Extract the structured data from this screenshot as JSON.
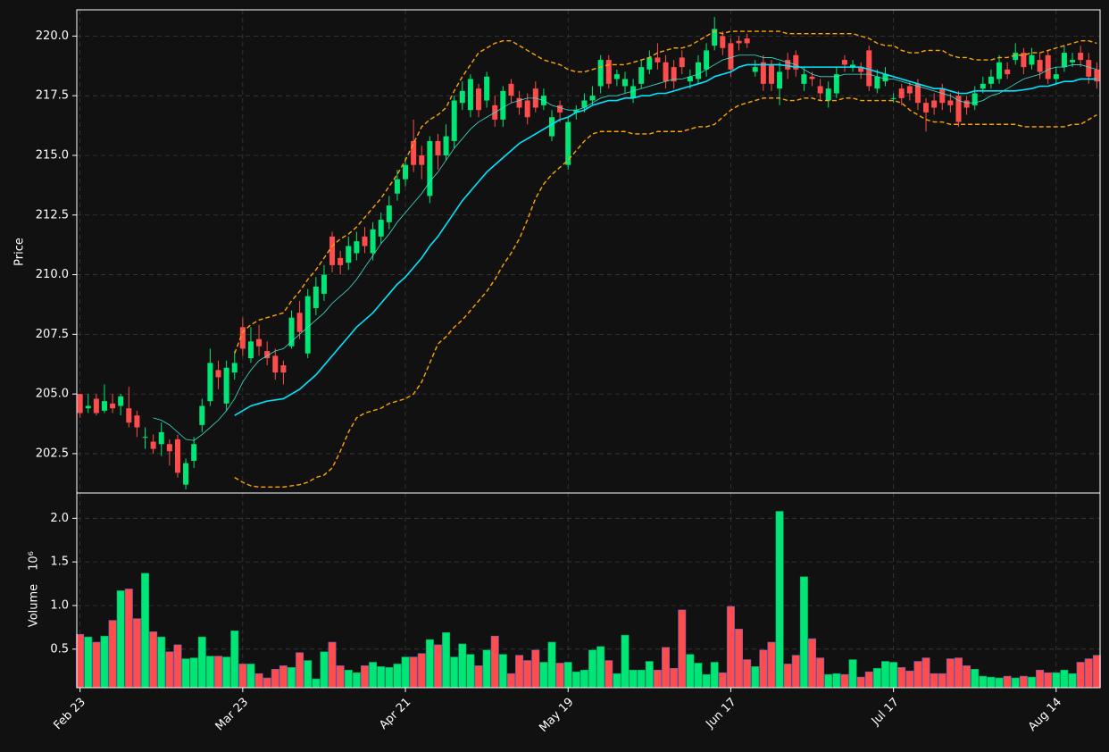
{
  "chart_data": {
    "type": "candlestick",
    "ylabel": "Price",
    "xlim": [
      -0.4,
      125.4
    ],
    "ylim": [
      200.85,
      221.1
    ],
    "yticks": [
      202.5,
      {
        "value": 205,
        "label": "205.0"
      },
      207.5,
      {
        "value": 210,
        "label": "210.0"
      },
      212.5,
      {
        "value": 215,
        "label": "215.0"
      },
      217.5,
      {
        "value": 220,
        "label": "220.0"
      }
    ],
    "xticks": [
      {
        "value": 0,
        "label": "Feb 23"
      },
      {
        "value": 20,
        "label": "Mar 23"
      },
      {
        "value": 40,
        "label": "Apr 21"
      },
      {
        "value": 60,
        "label": "May 19"
      },
      {
        "value": 80,
        "label": "Jun 17"
      },
      {
        "value": 100,
        "label": "Jul 17"
      },
      {
        "value": 120,
        "label": "Aug 14"
      }
    ],
    "grid": true,
    "up_color": "#00e676",
    "down_color": "#ff4d4d",
    "open": [
      205.0,
      204.4,
      204.8,
      204.3,
      204.6,
      204.5,
      204.4,
      204.1,
      203.2,
      203.0,
      202.9,
      202.9,
      203.1,
      201.2,
      202.2,
      203.7,
      204.7,
      206.0,
      204.6,
      205.9,
      207.8,
      206.5,
      207.3,
      206.8,
      206.6,
      206.2,
      207.0,
      208.4,
      206.7,
      208.6,
      209.2,
      211.6,
      210.7,
      210.5,
      210.9,
      211.6,
      210.9,
      211.6,
      212.2,
      213.4,
      214.0,
      215.6,
      215.0,
      213.3,
      215.6,
      215.0,
      215.6,
      217.2,
      216.9,
      217.8,
      217.3,
      217.1,
      216.5,
      218.0,
      217.4,
      217.3,
      217.8,
      217.1,
      215.8,
      217.1,
      214.6,
      216.8,
      217.0,
      217.3,
      217.9,
      219.0,
      218.2,
      217.9,
      217.4,
      218.0,
      218.6,
      219.1,
      218.9,
      218.7,
      219.1,
      218.1,
      218.2,
      218.6,
      219.6,
      220.0,
      219.7,
      219.8,
      219.9,
      218.5,
      218.9,
      218.8,
      217.8,
      219.0,
      219.2,
      218.0,
      218.3,
      217.9,
      217.3,
      217.6,
      219.0,
      218.7,
      218.7,
      219.4,
      217.8,
      218.1,
      217.4,
      217.8,
      217.9,
      218.0,
      217.2,
      217.3,
      217.8,
      217.3,
      217.5,
      217.3,
      217.1,
      217.8,
      218.0,
      218.2,
      218.6,
      219.0,
      219.3,
      218.8,
      219.0,
      219.2,
      218.2,
      218.7,
      218.9,
      219.3,
      219.0,
      218.6
    ],
    "close": [
      204.2,
      204.5,
      204.2,
      204.7,
      204.4,
      204.9,
      203.8,
      203.6,
      203.2,
      202.7,
      203.4,
      202.6,
      201.7,
      202.1,
      202.9,
      204.5,
      206.3,
      205.7,
      206.1,
      206.3,
      206.9,
      207.2,
      207.0,
      206.5,
      205.9,
      205.9,
      208.2,
      207.6,
      209.1,
      209.5,
      210.0,
      210.4,
      210.4,
      211.2,
      211.4,
      211.2,
      211.9,
      212.3,
      212.9,
      214.0,
      214.6,
      214.6,
      214.6,
      215.6,
      215.0,
      215.8,
      217.3,
      217.7,
      218.2,
      216.9,
      218.3,
      216.5,
      217.7,
      217.5,
      217.0,
      216.6,
      217.0,
      217.5,
      216.6,
      216.8,
      216.4,
      216.9,
      217.3,
      217.5,
      219.0,
      218.0,
      218.4,
      218.2,
      217.9,
      218.7,
      219.1,
      218.9,
      218.1,
      218.1,
      218.7,
      218.3,
      218.9,
      219.4,
      220.3,
      219.5,
      218.6,
      219.7,
      219.7,
      218.7,
      218.0,
      218.0,
      218.5,
      218.6,
      218.6,
      218.4,
      218.2,
      217.6,
      217.8,
      218.4,
      218.8,
      218.8,
      218.5,
      217.9,
      218.3,
      218.4,
      217.4,
      217.4,
      217.6,
      217.2,
      216.8,
      217.0,
      217.2,
      217.1,
      216.4,
      217.0,
      217.6,
      218.0,
      218.3,
      218.9,
      218.4,
      219.3,
      218.7,
      219.2,
      218.5,
      218.2,
      218.4,
      219.3,
      219.0,
      219.0,
      218.3,
      218.1
    ],
    "high": [
      205.0,
      205.0,
      205.0,
      205.4,
      205.0,
      205.0,
      205.3,
      204.3,
      203.6,
      203.3,
      203.8,
      203.1,
      203.3,
      202.3,
      203.2,
      204.8,
      206.9,
      206.4,
      206.4,
      206.8,
      208.2,
      207.8,
      207.9,
      207.2,
      206.9,
      206.4,
      208.5,
      208.9,
      209.4,
      209.9,
      210.4,
      211.8,
      211.0,
      211.6,
      211.8,
      212.0,
      212.2,
      212.6,
      213.3,
      214.4,
      214.9,
      216.5,
      215.4,
      215.8,
      215.9,
      216.3,
      217.5,
      218.1,
      218.4,
      218.0,
      218.5,
      217.5,
      217.9,
      218.2,
      217.7,
      217.6,
      218.1,
      217.8,
      216.9,
      217.3,
      216.6,
      217.1,
      217.6,
      217.9,
      219.2,
      219.2,
      218.6,
      218.5,
      218.2,
      219.0,
      219.4,
      219.7,
      219.2,
      219.0,
      219.4,
      218.6,
      219.2,
      219.7,
      220.8,
      220.2,
      219.9,
      220.0,
      220.1,
      219.0,
      219.2,
      219.0,
      218.9,
      219.3,
      219.4,
      218.7,
      218.5,
      218.2,
      218.1,
      218.7,
      219.2,
      219.0,
      218.9,
      219.6,
      218.6,
      218.7,
      217.6,
      218.0,
      218.1,
      218.2,
      217.4,
      217.6,
      218.0,
      217.6,
      217.7,
      217.5,
      217.9,
      218.3,
      218.6,
      219.2,
      218.9,
      219.7,
      219.5,
      219.5,
      219.3,
      219.4,
      218.7,
      219.6,
      219.3,
      219.6,
      219.3,
      218.9
    ],
    "low": [
      204.0,
      204.2,
      204.1,
      204.2,
      204.2,
      204.1,
      203.6,
      203.2,
      202.7,
      202.5,
      202.4,
      202.0,
      201.5,
      201.0,
      201.9,
      203.4,
      204.5,
      205.2,
      204.3,
      205.6,
      206.6,
      206.3,
      206.6,
      206.2,
      205.6,
      205.4,
      206.9,
      207.3,
      206.5,
      208.3,
      208.9,
      210.1,
      210.0,
      210.2,
      210.6,
      210.9,
      210.6,
      211.3,
      211.9,
      213.1,
      213.7,
      214.3,
      214.0,
      213.0,
      214.4,
      214.8,
      215.3,
      216.9,
      216.6,
      216.6,
      217.0,
      216.2,
      216.2,
      217.2,
      216.7,
      216.3,
      216.8,
      216.9,
      215.6,
      216.4,
      214.4,
      216.5,
      216.8,
      217.1,
      217.6,
      217.8,
      217.9,
      217.6,
      217.2,
      217.8,
      218.4,
      218.6,
      217.8,
      217.8,
      218.4,
      217.8,
      218.0,
      218.3,
      219.4,
      219.2,
      218.3,
      219.4,
      219.5,
      218.3,
      217.7,
      217.7,
      217.1,
      218.2,
      218.3,
      217.7,
      217.9,
      217.3,
      217.0,
      217.4,
      218.5,
      218.5,
      218.2,
      217.7,
      217.6,
      217.9,
      217.2,
      217.1,
      217.3,
      216.9,
      216.0,
      216.7,
      216.9,
      216.8,
      216.2,
      216.7,
      216.9,
      217.6,
      217.8,
      218.0,
      218.2,
      218.8,
      218.4,
      218.6,
      218.2,
      218.0,
      218.0,
      218.5,
      218.7,
      218.7,
      218.0,
      217.8
    ],
    "lines": [
      {
        "color": "#40e0d0",
        "width": 0.8,
        "dash": false,
        "values": [
          null,
          null,
          null,
          null,
          null,
          null,
          null,
          null,
          null,
          204.0,
          203.9,
          203.7,
          203.4,
          203.1,
          203.05,
          203.3,
          203.6,
          203.9,
          204.3,
          204.8,
          205.5,
          206.0,
          206.4,
          206.6,
          206.8,
          206.9,
          207.2,
          207.5,
          207.8,
          208.1,
          208.4,
          208.8,
          209.1,
          209.4,
          209.8,
          210.3,
          210.8,
          211.3,
          211.7,
          212.2,
          212.6,
          213.0,
          213.4,
          213.9,
          214.3,
          214.8,
          215.3,
          215.7,
          216.1,
          216.4,
          216.6,
          216.8,
          217.0,
          217.2,
          217.3,
          217.4,
          217.4,
          217.3,
          217.1,
          217.0,
          216.9,
          216.9,
          217.0,
          217.2,
          217.4,
          217.5,
          217.5,
          217.6,
          217.7,
          217.8,
          217.9,
          218.0,
          218.1,
          218.2,
          218.2,
          218.3,
          218.4,
          218.6,
          218.8,
          219.0,
          219.1,
          219.2,
          219.2,
          219.2,
          219.1,
          219.1,
          219.0,
          218.9,
          218.8,
          218.6,
          218.4,
          218.3,
          218.3,
          218.3,
          218.4,
          218.4,
          218.4,
          218.4,
          218.3,
          218.2,
          218.2,
          218.1,
          218.0,
          217.9,
          217.8,
          217.7,
          217.6,
          217.5,
          217.3,
          217.2,
          217.2,
          217.3,
          217.5,
          217.6,
          217.8,
          218.0,
          218.2,
          218.3,
          218.4,
          218.6,
          218.7,
          218.7,
          218.8,
          218.8,
          218.7,
          218.6
        ]
      },
      {
        "color": "#00e5ff",
        "width": 1.6,
        "dash": false,
        "values": [
          null,
          null,
          null,
          null,
          null,
          null,
          null,
          null,
          null,
          null,
          null,
          null,
          null,
          null,
          null,
          null,
          null,
          null,
          null,
          204.1,
          204.3,
          204.5,
          204.6,
          204.7,
          204.75,
          204.8,
          205.0,
          205.2,
          205.5,
          205.8,
          206.2,
          206.6,
          207.0,
          207.4,
          207.8,
          208.1,
          208.4,
          208.8,
          209.2,
          209.6,
          209.9,
          210.3,
          210.7,
          211.2,
          211.6,
          212.1,
          212.6,
          213.1,
          213.5,
          213.9,
          214.3,
          214.6,
          214.9,
          215.2,
          215.5,
          215.7,
          215.9,
          216.1,
          216.3,
          216.5,
          216.6,
          216.8,
          216.9,
          217.1,
          217.2,
          217.3,
          217.3,
          217.4,
          217.4,
          217.5,
          217.5,
          217.6,
          217.6,
          217.7,
          217.8,
          217.9,
          218.0,
          218.1,
          218.3,
          218.4,
          218.5,
          218.7,
          218.8,
          218.8,
          218.8,
          218.8,
          218.8,
          218.75,
          218.7,
          218.7,
          218.7,
          218.7,
          218.7,
          218.7,
          218.7,
          218.7,
          218.7,
          218.6,
          218.5,
          218.4,
          218.3,
          218.2,
          218.1,
          218.0,
          217.9,
          217.8,
          217.8,
          217.7,
          217.6,
          217.6,
          217.7,
          217.7,
          217.7,
          217.7,
          217.7,
          217.7,
          217.75,
          217.8,
          217.9,
          217.9,
          218.0,
          218.1,
          218.1,
          218.2,
          218.2,
          218.2
        ]
      },
      {
        "color": "#ffa500",
        "width": 1.4,
        "dash": true,
        "values": [
          null,
          null,
          null,
          null,
          null,
          null,
          null,
          null,
          null,
          null,
          null,
          null,
          null,
          null,
          null,
          null,
          null,
          null,
          null,
          206.7,
          207.6,
          207.9,
          208.1,
          208.2,
          208.3,
          208.4,
          208.9,
          209.3,
          209.8,
          210.2,
          210.7,
          211.2,
          211.5,
          211.7,
          212.0,
          212.4,
          212.8,
          213.2,
          213.7,
          214.2,
          214.8,
          215.5,
          216.2,
          216.5,
          216.7,
          217.0,
          217.7,
          218.3,
          218.8,
          219.3,
          219.5,
          219.7,
          219.8,
          219.8,
          219.6,
          219.4,
          219.2,
          219.0,
          218.9,
          218.8,
          218.6,
          218.5,
          218.5,
          218.6,
          218.7,
          218.8,
          218.8,
          218.8,
          218.9,
          219.0,
          219.1,
          219.3,
          219.4,
          219.5,
          219.5,
          219.6,
          219.8,
          220.0,
          220.2,
          220.1,
          220.2,
          220.2,
          220.2,
          220.2,
          220.2,
          220.2,
          220.2,
          220.1,
          220.1,
          220.1,
          220.1,
          220.1,
          220.1,
          220.1,
          220.1,
          220.1,
          220.0,
          219.9,
          219.7,
          219.6,
          219.6,
          219.4,
          219.3,
          219.3,
          219.4,
          219.4,
          219.4,
          219.2,
          219.1,
          219.1,
          219.0,
          219.0,
          219.0,
          219.1,
          219.1,
          219.2,
          219.2,
          219.3,
          219.3,
          219.4,
          219.5,
          219.6,
          219.7,
          219.8,
          219.8,
          219.7
        ]
      },
      {
        "color": "#ffa500",
        "width": 1.4,
        "dash": true,
        "values": [
          null,
          null,
          null,
          null,
          null,
          null,
          null,
          null,
          null,
          null,
          null,
          null,
          null,
          null,
          null,
          null,
          null,
          null,
          null,
          201.5,
          201.3,
          201.15,
          201.1,
          201.1,
          201.1,
          201.1,
          201.15,
          201.2,
          201.3,
          201.5,
          201.6,
          201.9,
          202.6,
          203.4,
          204.0,
          204.2,
          204.3,
          204.4,
          204.6,
          204.7,
          204.8,
          205.0,
          205.5,
          206.3,
          207.1,
          207.4,
          207.8,
          208.1,
          208.5,
          208.9,
          209.3,
          209.8,
          210.4,
          210.9,
          211.5,
          212.3,
          213.2,
          213.8,
          214.2,
          214.5,
          214.8,
          215.2,
          215.6,
          215.9,
          216.0,
          216.0,
          216.0,
          216.0,
          215.9,
          215.9,
          215.9,
          216.0,
          216.0,
          216.0,
          216.0,
          216.1,
          216.2,
          216.2,
          216.3,
          216.6,
          216.9,
          217.1,
          217.2,
          217.3,
          217.4,
          217.4,
          217.4,
          217.3,
          217.3,
          217.4,
          217.4,
          217.3,
          217.3,
          217.3,
          217.4,
          217.4,
          217.3,
          217.3,
          217.3,
          217.3,
          217.3,
          217.2,
          216.9,
          216.7,
          216.5,
          216.4,
          216.4,
          216.3,
          216.3,
          216.3,
          216.3,
          216.3,
          216.3,
          216.3,
          216.3,
          216.3,
          216.2,
          216.2,
          216.2,
          216.2,
          216.2,
          216.2,
          216.3,
          216.3,
          216.5,
          216.7
        ]
      }
    ],
    "volume": {
      "ylabel": "Volume",
      "offset_label": "10⁶",
      "ylim": [
        0.058,
        2.29
      ],
      "yticks": [
        0.5,
        {
          "value": 1,
          "label": "1.0"
        },
        1.5,
        {
          "value": 2,
          "label": "2.0"
        }
      ],
      "values": [
        0.67,
        0.64,
        0.58,
        0.65,
        0.83,
        1.17,
        1.19,
        0.85,
        1.37,
        0.7,
        0.64,
        0.47,
        0.55,
        0.39,
        0.4,
        0.64,
        0.42,
        0.42,
        0.41,
        0.71,
        0.33,
        0.33,
        0.22,
        0.17,
        0.27,
        0.31,
        0.29,
        0.46,
        0.37,
        0.16,
        0.47,
        0.58,
        0.31,
        0.26,
        0.23,
        0.31,
        0.35,
        0.3,
        0.29,
        0.33,
        0.41,
        0.41,
        0.45,
        0.61,
        0.55,
        0.69,
        0.41,
        0.56,
        0.44,
        0.31,
        0.49,
        0.65,
        0.44,
        0.22,
        0.43,
        0.37,
        0.49,
        0.35,
        0.58,
        0.34,
        0.35,
        0.24,
        0.26,
        0.49,
        0.53,
        0.37,
        0.22,
        0.66,
        0.26,
        0.26,
        0.36,
        0.26,
        0.52,
        0.28,
        0.95,
        0.44,
        0.34,
        0.21,
        0.35,
        0.23,
        0.99,
        0.73,
        0.38,
        0.3,
        0.49,
        0.58,
        2.08,
        0.33,
        0.43,
        1.33,
        0.62,
        0.4,
        0.21,
        0.22,
        0.21,
        0.38,
        0.18,
        0.24,
        0.28,
        0.36,
        0.35,
        0.29,
        0.25,
        0.36,
        0.4,
        0.22,
        0.22,
        0.39,
        0.4,
        0.31,
        0.27,
        0.19,
        0.18,
        0.17,
        0.19,
        0.17,
        0.19,
        0.18,
        0.26,
        0.23,
        0.23,
        0.26,
        0.22,
        0.35,
        0.39,
        0.43
      ]
    }
  }
}
